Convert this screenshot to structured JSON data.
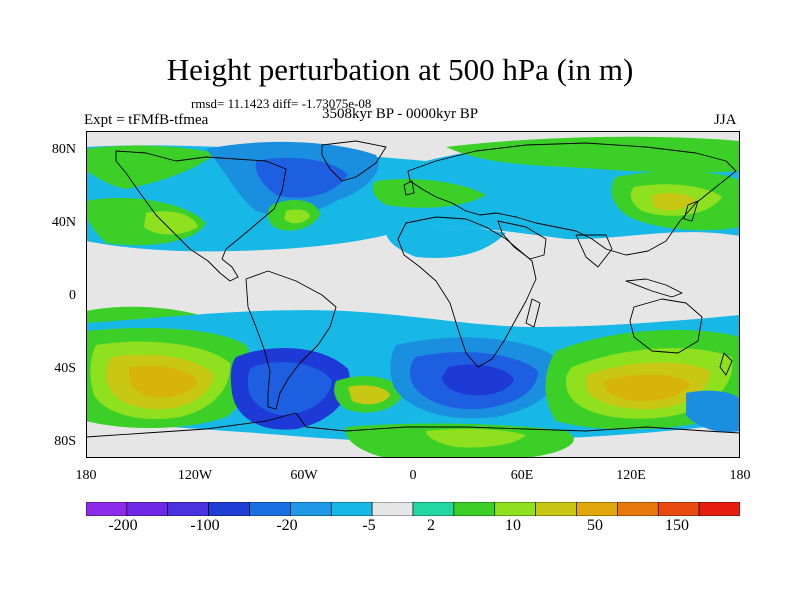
{
  "title": "Height perturbation at 500 hPa (in m)",
  "stats": "rmsd= 11.1423 diff= -1.73075e-08",
  "period": "3508kyr BP - 0000kyr BP",
  "expt": "Expt = tFMfB-tfmea",
  "season": "JJA",
  "lat_ticks": [
    "80N",
    "40N",
    "0",
    "40S",
    "80S"
  ],
  "lon_ticks": [
    "180",
    "120W",
    "60W",
    "0",
    "60E",
    "120E",
    "180"
  ],
  "colorbar": {
    "labels": [
      "-200",
      "-100",
      "-20",
      "-5",
      "2",
      "10",
      "50",
      "150"
    ],
    "colors": [
      "#8c2be8",
      "#6d28e6",
      "#4a32e0",
      "#1f3ed6",
      "#1a6fe0",
      "#1f98e8",
      "#18b8e6",
      "#e6e6e6",
      "#22d8a0",
      "#3ccf28",
      "#8fe01e",
      "#c8c814",
      "#e0a80a",
      "#e8780a",
      "#e84a10",
      "#e61e10"
    ]
  },
  "map_colors": {
    "neutral": "#e6e6e6",
    "light_blue": "#18b8e6",
    "mid_blue": "#1a8fe0",
    "blue": "#1e5ee0",
    "dark_blue": "#1e3ad6",
    "teal": "#22d8a0",
    "green": "#3ccf28",
    "lime": "#8fe01e",
    "olive": "#c8c814",
    "gold": "#d6b40c"
  }
}
